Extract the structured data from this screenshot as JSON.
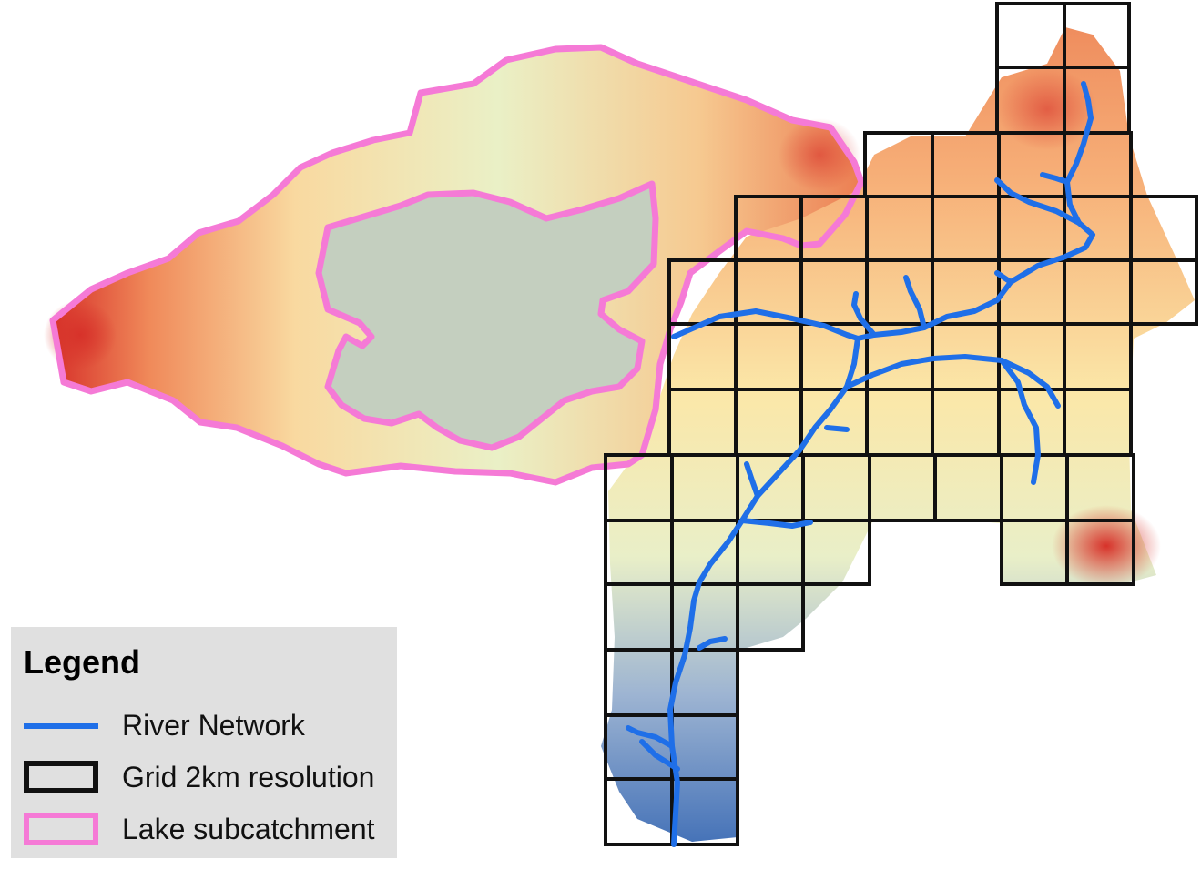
{
  "legend": {
    "title": "Legend",
    "items": [
      {
        "label": "River Network",
        "symbol": "line",
        "color": "#1f6fe8"
      },
      {
        "label": "Grid 2km resolution",
        "symbol": "box",
        "color": "#111111"
      },
      {
        "label": "Lake subcatchment",
        "symbol": "box",
        "color": "#f57ad6"
      }
    ]
  },
  "colors": {
    "river": "#1f6fe8",
    "grid": "#111111",
    "lake_subcatchment": "#f57ad6",
    "lake_fill": "#c4cfbf",
    "elevation_high": "#d7322a",
    "elevation_mid": "#fbf2ba",
    "elevation_low": "#3f6bb5"
  }
}
